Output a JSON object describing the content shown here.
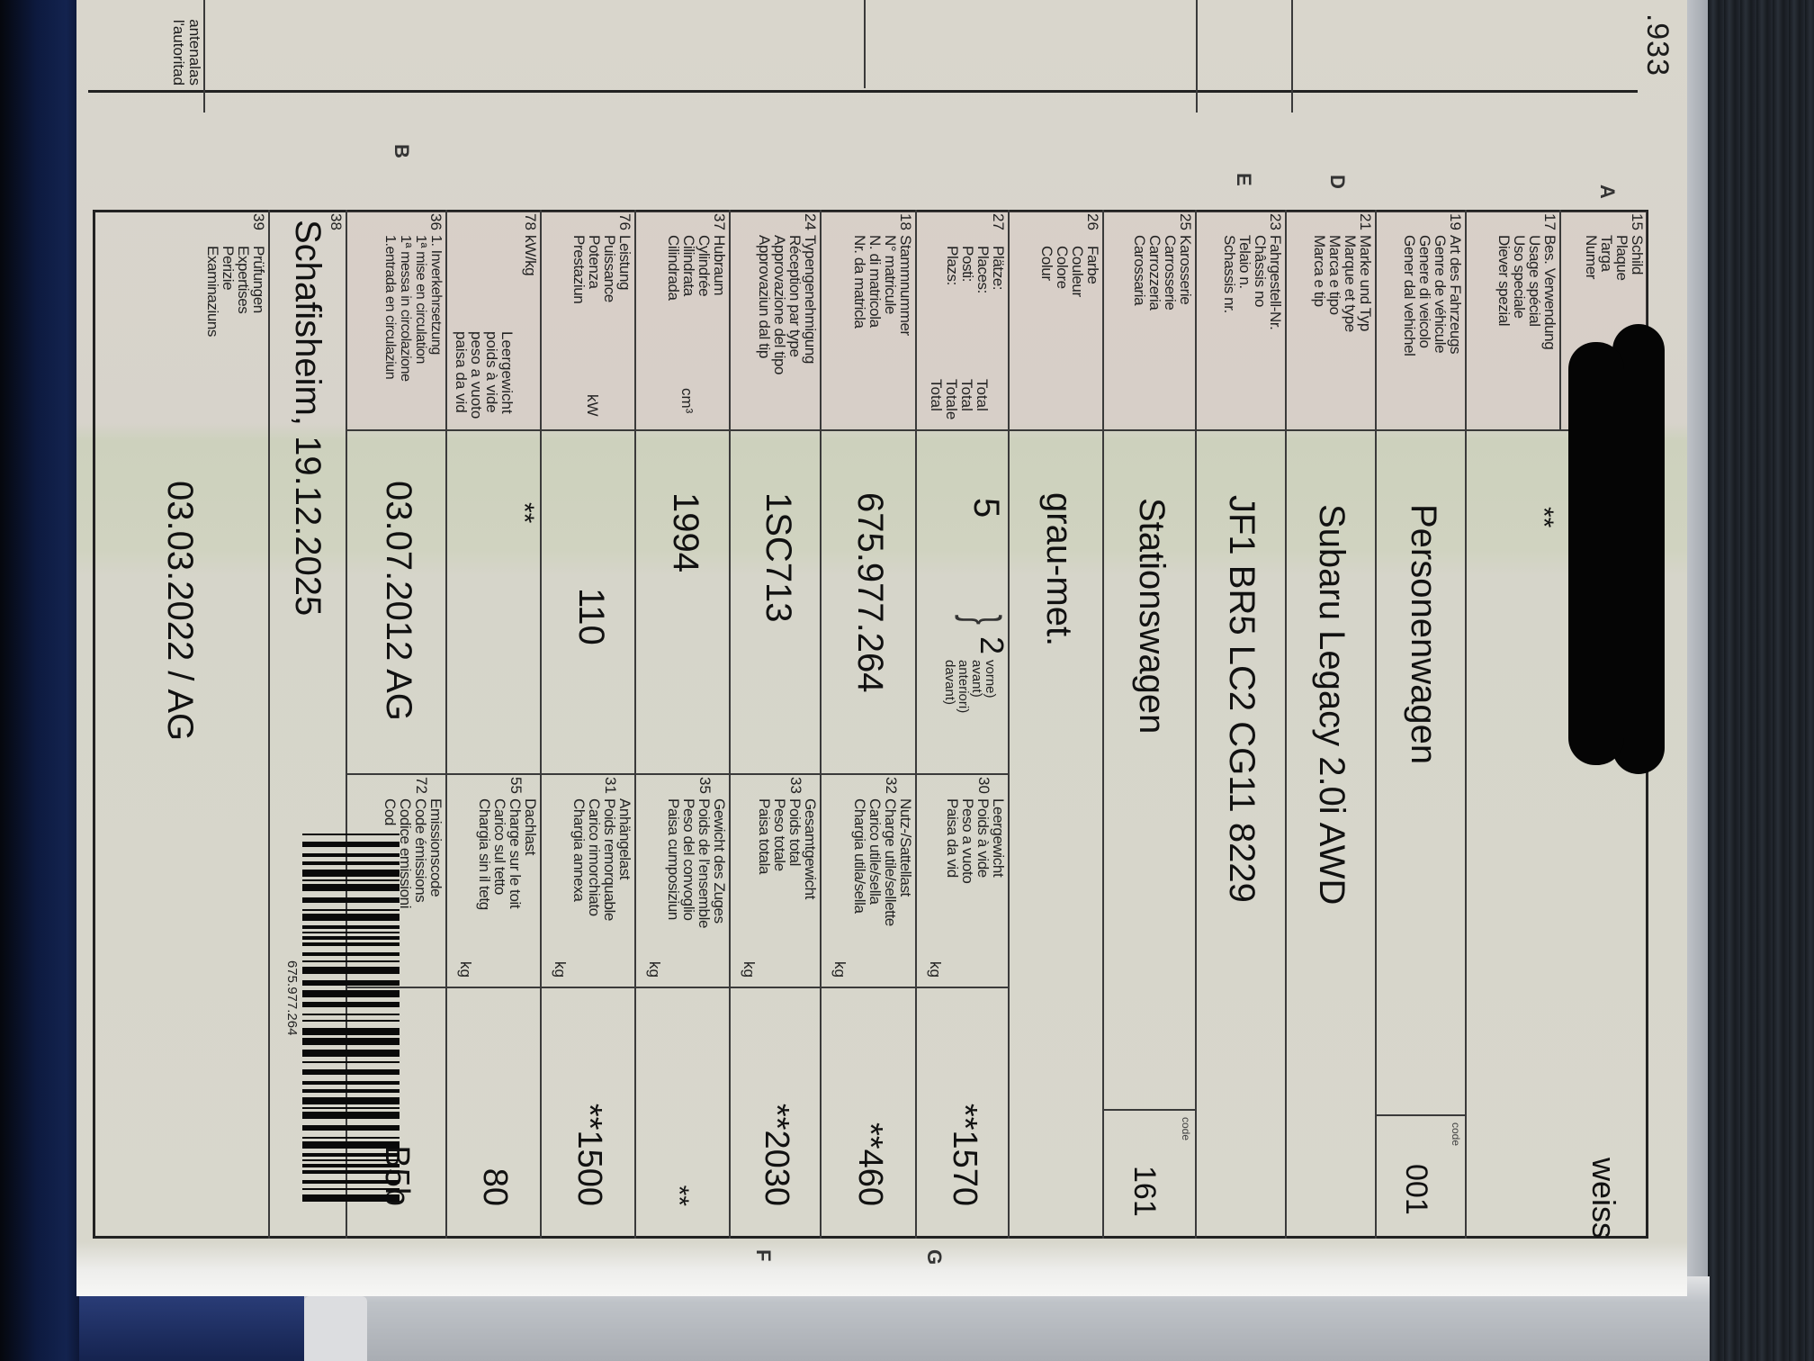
{
  "colors": {
    "paper": "#d8d6cb",
    "ink": "#1b1b1b",
    "binder": "#13234f",
    "redaction": "#050505"
  },
  "top_box": {
    "fragment_line1": "antenalas",
    "fragment_line2": "l'autoritad",
    "number_fragment": ".933"
  },
  "sections": {
    "A": "A",
    "D": "D",
    "E": "E",
    "B": "B",
    "G": "G",
    "F": "F"
  },
  "fields": {
    "f15": {
      "num": "15",
      "label": "Schild\nPlaque\nTarga\nNumer",
      "value_right": "weiss"
    },
    "f17": {
      "num": "17",
      "label": "Bes. Verwendung\nUsage spécial\nUso speciale\nDiever spezial",
      "value": "**"
    },
    "f19": {
      "num": "19",
      "label": "Art des Fahrzeugs\nGenre de véhicule\nGenere di veicolo\nGener dal vehichel",
      "value": "Personenwagen",
      "code_label": "code",
      "code": "001"
    },
    "f21": {
      "num": "21",
      "label": "Marke und Typ\nMarque et type\nMarca e tipo\nMarca e tip",
      "value": "Subaru Legacy 2.0i AWD"
    },
    "f23": {
      "num": "23",
      "label": "Fahrgestell-Nr.\nChâssis no\nTelaio n.\nSchassis nr.",
      "value": "JF1 BR5 LC2 CG11 8229"
    },
    "f25": {
      "num": "25",
      "label": "Karosserie\nCarrosserie\nCarrozzeria\nCarossaria",
      "value": "Stationswagen",
      "code_label": "code",
      "code": "161"
    },
    "f26": {
      "num": "26",
      "label": "Farbe\nCouleur\nColore\nColur",
      "value": "grau-met."
    },
    "f27": {
      "num": "27",
      "label": "Plätze:\nPlaces:\nPosti:\nPlazs:",
      "unit": "Total\nTotal\nTotale\nTotal",
      "value": "5",
      "front_value": "2",
      "front_label": "vorne)\navant)\nanteriori)\ndavant)"
    },
    "f18": {
      "num": "18",
      "label": "Stammnummer\nN° matricule\nN. di matricola\nNr. da matricla",
      "value": "675.977.264"
    },
    "f24": {
      "num": "24",
      "label": "Typengenehmigung\nRéception par type\nApprovazione del tipo\nApprovaziun dal tip",
      "value": "1SC713"
    },
    "f37": {
      "num": "37",
      "label": "Hubraum\nCylindrée\nCilindrata\nCilindrada",
      "unit": "cm³",
      "value": "1994"
    },
    "f76": {
      "num": "76",
      "label": "Leistung\nPuissance\nPotenza\nPrestaziun",
      "unit": "kW",
      "value": "110"
    },
    "f78": {
      "num": "78",
      "label": "kW/kg",
      "sublabel": "Leergewicht\npoids à vide\npeso a vuoto\npaisa da vid",
      "value": "**"
    },
    "f36": {
      "num": "36",
      "label": "1. Inverkehrsetzung\n1ª mise en circulation\n1ª messa in circolazione\n1.entrada en circulaziun",
      "value": "03.07.2012 AG"
    },
    "f38": {
      "num": "38",
      "value": "Schafisheim, 19.12.2025"
    },
    "f39": {
      "num": "39",
      "label": "Prüfungen\nExpertises\nPerizie\nExaminaziuns",
      "value": "03.03.2022 / AG"
    }
  },
  "weights": [
    {
      "num": "30",
      "label": "Leergewicht\nPoids à vide\nPeso a vuoto\nPaisa da vid",
      "unit": "kg",
      "value": "**1570"
    },
    {
      "num": "32",
      "label": "Nutz-/Sattellast\nCharge utile/sellette\nCarico utile/sella\nChargia utila/sella",
      "unit": "kg",
      "value": "**460"
    },
    {
      "num": "33",
      "label": "Gesamtgewicht\nPoids total\nPeso totale\nPaisa totala",
      "unit": "kg",
      "value": "**2030"
    },
    {
      "num": "35",
      "label": "Gewicht des Zuges\nPoids de l'ensemble\nPeso del convoglio\nPaisa cumposiziun",
      "unit": "kg",
      "value": "**"
    },
    {
      "num": "31",
      "label": "Anhängelast\nPoids remorquable\nCarico rimorchiato\nChargia annexa",
      "unit": "kg",
      "value": "**1500"
    },
    {
      "num": "55",
      "label": "Dachlast\nCharge sur le toit\nCarico sul tetto\nChargia sin il tetg",
      "unit": "kg",
      "value": "80"
    },
    {
      "num": "72",
      "label": "Emissionscode\nCode émissions\nCodice emissioni\nCod",
      "value": "B5b"
    }
  ],
  "barcode": {
    "number": "675.977.264"
  }
}
